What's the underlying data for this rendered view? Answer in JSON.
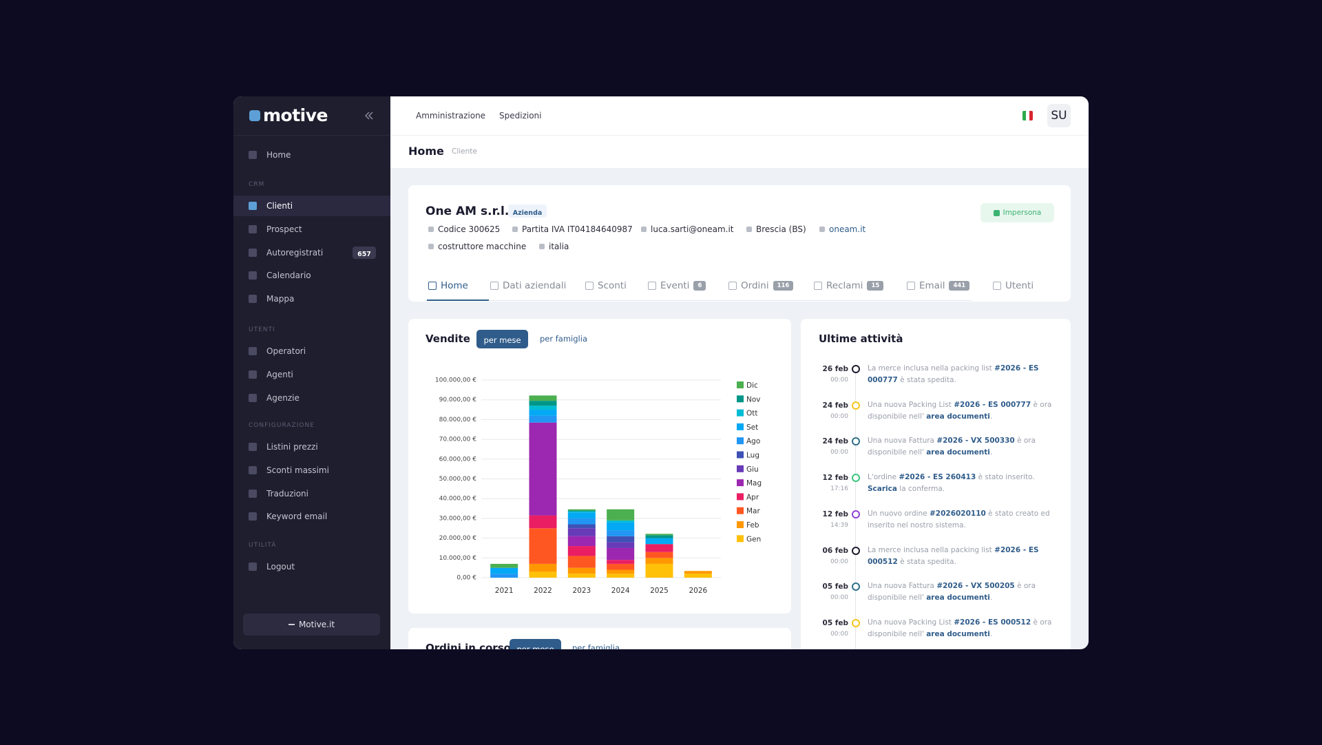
{
  "sidebar": {
    "logo": "motive",
    "home": "Home",
    "groups": [
      {
        "title": "CRM",
        "items": [
          {
            "label": "Clienti",
            "active": true
          },
          {
            "label": "Prospect"
          },
          {
            "label": "Autoregistrati",
            "badge": 657
          },
          {
            "label": "Calendario"
          },
          {
            "label": "Mappa"
          }
        ]
      },
      {
        "title": "UTENTI",
        "items": [
          {
            "label": "Operatori"
          },
          {
            "label": "Agenti"
          },
          {
            "label": "Agenzie"
          }
        ]
      },
      {
        "title": "CONFIGURAZIONE",
        "items": [
          {
            "label": "Listini prezzi"
          },
          {
            "label": "Sconti massimi"
          },
          {
            "label": "Traduzioni"
          },
          {
            "label": "Keyword email"
          }
        ]
      },
      {
        "title": "UTILITÀ",
        "items": [
          {
            "label": "Logout"
          }
        ]
      }
    ],
    "footer_button": "Motive.it"
  },
  "topnav": [
    "Amministrazione",
    "Spedizioni"
  ],
  "user": "SU",
  "breadcrumb": {
    "title": "Home",
    "sub": "Cliente"
  },
  "client": {
    "name": "One AM s.r.l.",
    "badge": "Azienda",
    "action": "Impersona",
    "details": [
      "Codice 300625",
      "Partita IVA IT04184640987",
      "luca.sarti@oneam.it",
      "Brescia (BS)",
      "oneam.it",
      "costruttore macchine",
      "italia"
    ]
  },
  "tabs": [
    {
      "label": "Home",
      "active": true
    },
    {
      "label": "Dati aziendali"
    },
    {
      "label": "Sconti"
    },
    {
      "label": "Eventi",
      "badge": 6
    },
    {
      "label": "Ordini",
      "badge": 116
    },
    {
      "label": "Reclami",
      "badge": 15
    },
    {
      "label": "Email",
      "badge": 441
    },
    {
      "label": "Utenti"
    }
  ],
  "sales_toggles": [
    "per mese",
    "per famiglia"
  ],
  "chart_data": {
    "type": "bar",
    "stacked": true,
    "title": "Vendite",
    "categories": [
      "2021",
      "2022",
      "2023",
      "2024",
      "2025",
      "2026"
    ],
    "ylim": [
      0,
      100000
    ],
    "yticks": [
      {
        "value": 0,
        "label": "0,00 €"
      },
      {
        "value": 10000,
        "label": "10.000,00 €"
      },
      {
        "value": 20000,
        "label": "20.000,00 €"
      },
      {
        "value": 30000,
        "label": "30.000,00 €"
      },
      {
        "value": 40000,
        "label": "40.000,00 €"
      },
      {
        "value": 50000,
        "label": "50.000,00 €"
      },
      {
        "value": 60000,
        "label": "60.000,00 €"
      },
      {
        "value": 70000,
        "label": "70.000,00 €"
      },
      {
        "value": 80000,
        "label": "80.000,00 €"
      },
      {
        "value": 90000,
        "label": "90.000,00 €"
      },
      {
        "value": 100000,
        "label": "100.000,00 €"
      }
    ],
    "grid": true,
    "series": [
      {
        "name": "Gen",
        "color": "#ffc107",
        "values": [
          0,
          3000,
          2000,
          2000,
          7000,
          2000
        ]
      },
      {
        "name": "Feb",
        "color": "#ff9800",
        "values": [
          0,
          4000,
          3000,
          2000,
          3000,
          1400
        ]
      },
      {
        "name": "Mar",
        "color": "#ff5722",
        "values": [
          0,
          18000,
          6000,
          3000,
          3000,
          0
        ]
      },
      {
        "name": "Apr",
        "color": "#e91e63",
        "values": [
          0,
          6500,
          5000,
          2000,
          4000,
          0
        ]
      },
      {
        "name": "Mag",
        "color": "#9c27b0",
        "values": [
          0,
          47000,
          5000,
          6000,
          0,
          0
        ]
      },
      {
        "name": "Giu",
        "color": "#673ab7",
        "values": [
          0,
          0,
          4000,
          3000,
          0,
          0
        ]
      },
      {
        "name": "Lug",
        "color": "#3f51b5",
        "values": [
          0,
          0,
          2000,
          3000,
          0,
          0
        ]
      },
      {
        "name": "Ago",
        "color": "#2196f3",
        "values": [
          2000,
          3500,
          3000,
          3000,
          0,
          0
        ]
      },
      {
        "name": "Set",
        "color": "#03a9f4",
        "values": [
          3000,
          3000,
          3000,
          4000,
          3000,
          0
        ]
      },
      {
        "name": "Ott",
        "color": "#00bcd4",
        "values": [
          0,
          2000,
          500,
          1000,
          0,
          0
        ]
      },
      {
        "name": "Nov",
        "color": "#009688",
        "values": [
          0,
          2500,
          500,
          0,
          1500,
          0
        ]
      },
      {
        "name": "Dic",
        "color": "#4caf50",
        "values": [
          2000,
          2700,
          600,
          5600,
          700,
          0
        ]
      }
    ]
  },
  "orders_panel": {
    "title": "Ordini in corso",
    "toggles": [
      "per mese",
      "per famiglia"
    ]
  },
  "activities": {
    "title": "Ultime attività",
    "items": [
      {
        "date": "26 feb",
        "time": "00:00",
        "color": "#1b1b2f",
        "parts": [
          {
            "t": "La merce inclusa nella packing list "
          },
          {
            "t": "#2026 - ES 000777",
            "link": true
          },
          {
            "t": " è stata spedita."
          }
        ]
      },
      {
        "date": "24 feb",
        "time": "00:00",
        "color": "#f5c518",
        "parts": [
          {
            "t": "Una nuova Packing List "
          },
          {
            "t": "#2026 - ES 000777",
            "link": true
          },
          {
            "t": " è ora disponibile nell' "
          },
          {
            "t": "area documenti",
            "link": true
          },
          {
            "t": "."
          }
        ]
      },
      {
        "date": "24 feb",
        "time": "00:00",
        "color": "#2f6f8a",
        "parts": [
          {
            "t": "Una nuova Fattura "
          },
          {
            "t": "#2026 - VX 500330",
            "link": true
          },
          {
            "t": " è ora disponibile nell' "
          },
          {
            "t": "area documenti",
            "link": true
          },
          {
            "t": "."
          }
        ]
      },
      {
        "date": "12 feb",
        "time": "17:16",
        "color": "#3cc47c",
        "parts": [
          {
            "t": "L'ordine "
          },
          {
            "t": "#2026 - ES 260413",
            "link": true
          },
          {
            "t": " è stato inserito. "
          },
          {
            "t": "Scarica",
            "link": true
          },
          {
            "t": " la conferma."
          }
        ]
      },
      {
        "date": "12 feb",
        "time": "14:39",
        "color": "#8e44d6",
        "parts": [
          {
            "t": "Un nuovo ordine "
          },
          {
            "t": "#2026020110",
            "link": true
          },
          {
            "t": " è stato creato ed inserito nel nostro sistema."
          }
        ]
      },
      {
        "date": "06 feb",
        "time": "00:00",
        "color": "#1b1b2f",
        "parts": [
          {
            "t": "La merce inclusa nella packing list "
          },
          {
            "t": "#2026 - ES 000512",
            "link": true
          },
          {
            "t": " è stata spedita."
          }
        ]
      },
      {
        "date": "05 feb",
        "time": "00:00",
        "color": "#2f6f8a",
        "parts": [
          {
            "t": "Una nuova Fattura "
          },
          {
            "t": "#2026 - VX 500205",
            "link": true
          },
          {
            "t": " è ora disponibile nell' "
          },
          {
            "t": "area documenti",
            "link": true
          },
          {
            "t": "."
          }
        ]
      },
      {
        "date": "05 feb",
        "time": "00:00",
        "color": "#f5c518",
        "parts": [
          {
            "t": "Una nuova Packing List "
          },
          {
            "t": "#2026 - ES 000512",
            "link": true
          },
          {
            "t": " è ora disponibile nell' "
          },
          {
            "t": "area documenti",
            "link": true
          },
          {
            "t": "."
          }
        ]
      }
    ]
  }
}
